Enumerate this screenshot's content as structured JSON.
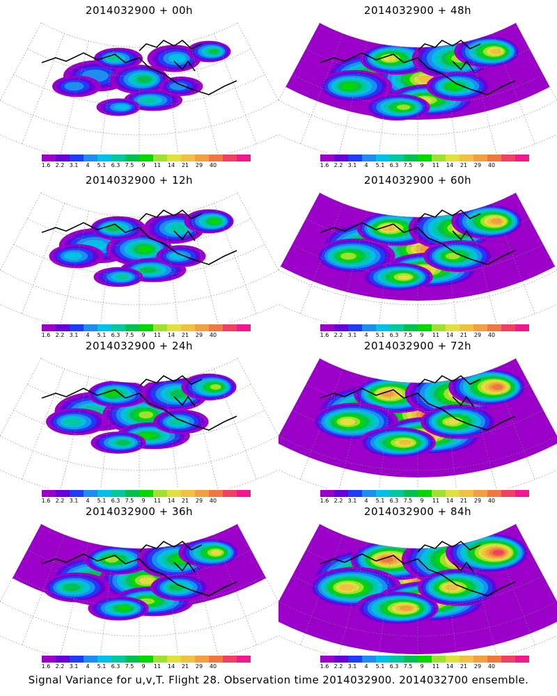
{
  "caption": "Signal Variance for u,v,T. Flight 28. Observation time 2014032900. 2014032700 ensemble.",
  "colorbar": {
    "labels": [
      "1.6",
      "2.2",
      "3.1",
      "4",
      "5.1",
      "6.3",
      "7.5",
      "9",
      "11",
      "14",
      "21",
      "29",
      "40"
    ],
    "colors": [
      "#9a00c8",
      "#6a00d8",
      "#1e3cf8",
      "#1e8cf0",
      "#00c0e8",
      "#00c8a0",
      "#00c050",
      "#00d800",
      "#a0e030",
      "#e0e040",
      "#f0c040",
      "#f0a040",
      "#f07840",
      "#f04060",
      "#f0188c"
    ]
  },
  "panels": [
    {
      "title": "2014032900 + 00h",
      "intensity": 0
    },
    {
      "title": "2014032900 + 48h",
      "intensity": 4
    },
    {
      "title": "2014032900 + 12h",
      "intensity": 1
    },
    {
      "title": "2014032900 + 60h",
      "intensity": 5
    },
    {
      "title": "2014032900 + 24h",
      "intensity": 2
    },
    {
      "title": "2014032900 + 72h",
      "intensity": 6
    },
    {
      "title": "2014032900 + 36h",
      "intensity": 3
    },
    {
      "title": "2014032900 + 84h",
      "intensity": 7
    }
  ]
}
